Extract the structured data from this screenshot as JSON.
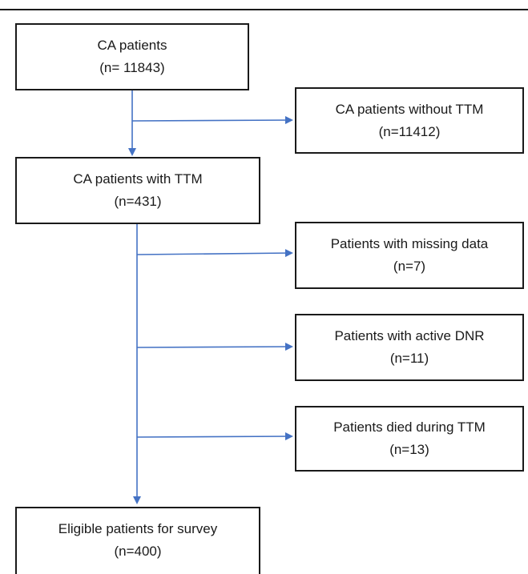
{
  "colors": {
    "arrow": "#4472c4",
    "box_border": "#1a1a1a",
    "text": "#1a1a1a"
  },
  "flowchart": {
    "main": {
      "total": {
        "label": "CA patients",
        "count": "(n= 11843)"
      },
      "with_ttm": {
        "label": "CA patients with TTM",
        "count": "(n=431)"
      },
      "eligible": {
        "label": "Eligible patients for survey",
        "count": "(n=400)"
      }
    },
    "exclusions": {
      "without_ttm": {
        "label": "CA patients without TTM",
        "count": "(n=11412)"
      },
      "missing_data": {
        "label": "Patients with missing data",
        "count": "(n=7)"
      },
      "active_dnr": {
        "label": "Patients with active DNR",
        "count": "(n=11)"
      },
      "died_ttm": {
        "label": "Patients died during TTM",
        "count": "(n=13)"
      }
    }
  }
}
